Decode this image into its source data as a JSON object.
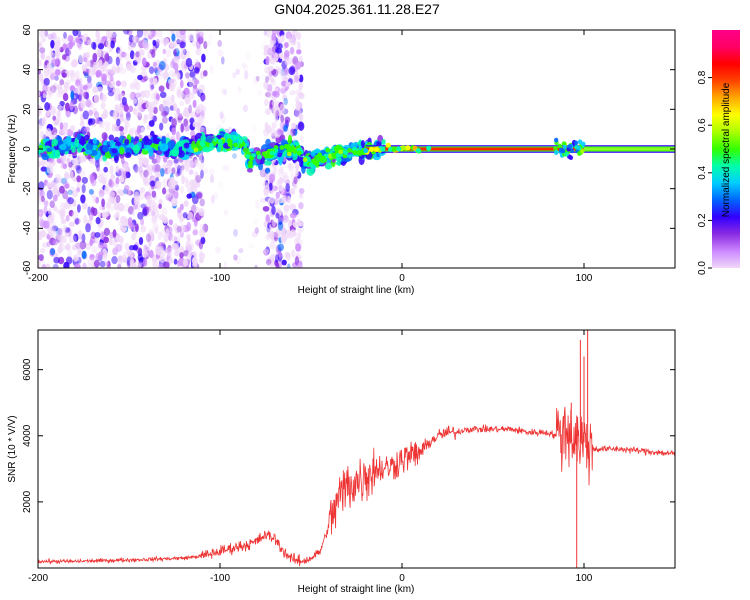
{
  "figure_title": "GN04.2025.361.11.28.E27",
  "chart_data": [
    {
      "type": "heatmap",
      "name": "spectrogram",
      "xlabel": "Height of straight line (km)",
      "ylabel": "Frequency (Hz)",
      "xlim": [
        -200,
        150
      ],
      "ylim": [
        -60,
        60
      ],
      "xticks": [
        -200,
        -100,
        0,
        100
      ],
      "xtick_labels": [
        "-200",
        "-100",
        "0",
        "100"
      ],
      "yticks": [
        -60,
        -40,
        -20,
        0,
        20,
        40,
        60
      ],
      "ytick_labels": [
        "-60",
        "-40",
        "-20",
        "0",
        "20",
        "40",
        "60"
      ],
      "colorbar": {
        "label": "Normalized spectral amplitude",
        "range": [
          0,
          1
        ],
        "ticks": [
          0.0,
          0.2,
          0.4,
          0.6,
          0.8
        ],
        "tick_labels": [
          "0.0",
          "0.2",
          "0.4",
          "0.6",
          "0.8"
        ],
        "colors": [
          "#f0d8f8",
          "#cc88ff",
          "#8a2be2",
          "#3300ff",
          "#0066ff",
          "#00ccff",
          "#00ffaa",
          "#33ff00",
          "#aaff00",
          "#ffff00",
          "#ffaa00",
          "#ff4400",
          "#ff0000",
          "#ff0066",
          "#ff0088"
        ]
      },
      "features": {
        "noise_region_km": [
          -200,
          -55
        ],
        "wandering_band_km": [
          -200,
          -20
        ],
        "carrier_freq_hz": 0,
        "strong_carrier_km": [
          -20,
          100
        ],
        "disturbance_near_km": 92
      }
    },
    {
      "type": "line",
      "name": "snr",
      "xlabel": "Height of straight line (km)",
      "ylabel": "SNR (10 * V/V)",
      "xlim": [
        -200,
        150
      ],
      "ylim": [
        0,
        7200
      ],
      "xticks": [
        -200,
        -100,
        0,
        100
      ],
      "xtick_labels": [
        "-200",
        "-100",
        "0",
        "100"
      ],
      "yticks": [
        2000,
        4000,
        6000
      ],
      "ytick_labels": [
        "2000",
        "4000",
        "6000"
      ],
      "color": "#ee3333",
      "series": [
        {
          "name": "SNR",
          "x": [
            -200,
            -180,
            -160,
            -140,
            -120,
            -110,
            -100,
            -90,
            -85,
            -80,
            -75,
            -70,
            -65,
            -60,
            -55,
            -50,
            -45,
            -40,
            -35,
            -30,
            -25,
            -20,
            -15,
            -10,
            -5,
            0,
            5,
            10,
            15,
            20,
            25,
            30,
            35,
            40,
            50,
            60,
            70,
            80,
            85,
            90,
            95,
            100,
            105,
            110,
            120,
            130,
            140,
            150
          ],
          "y": [
            200,
            200,
            230,
            260,
            300,
            360,
            500,
            650,
            700,
            800,
            1000,
            900,
            500,
            250,
            200,
            300,
            500,
            1300,
            2100,
            2500,
            2600,
            2800,
            3000,
            3000,
            3100,
            3300,
            3400,
            3500,
            3800,
            4000,
            4100,
            4100,
            4200,
            4200,
            4200,
            4200,
            4100,
            4100,
            4000,
            4200,
            4000,
            3800,
            3600,
            3600,
            3600,
            3550,
            3500,
            3450
          ]
        }
      ],
      "spikes": [
        {
          "x": 98,
          "y": 6900
        },
        {
          "x": 100,
          "y": 6400
        },
        {
          "x": 102,
          "y": 7200
        },
        {
          "x": 93,
          "y": 5000
        },
        {
          "x": 96,
          "y": 0
        }
      ]
    }
  ]
}
